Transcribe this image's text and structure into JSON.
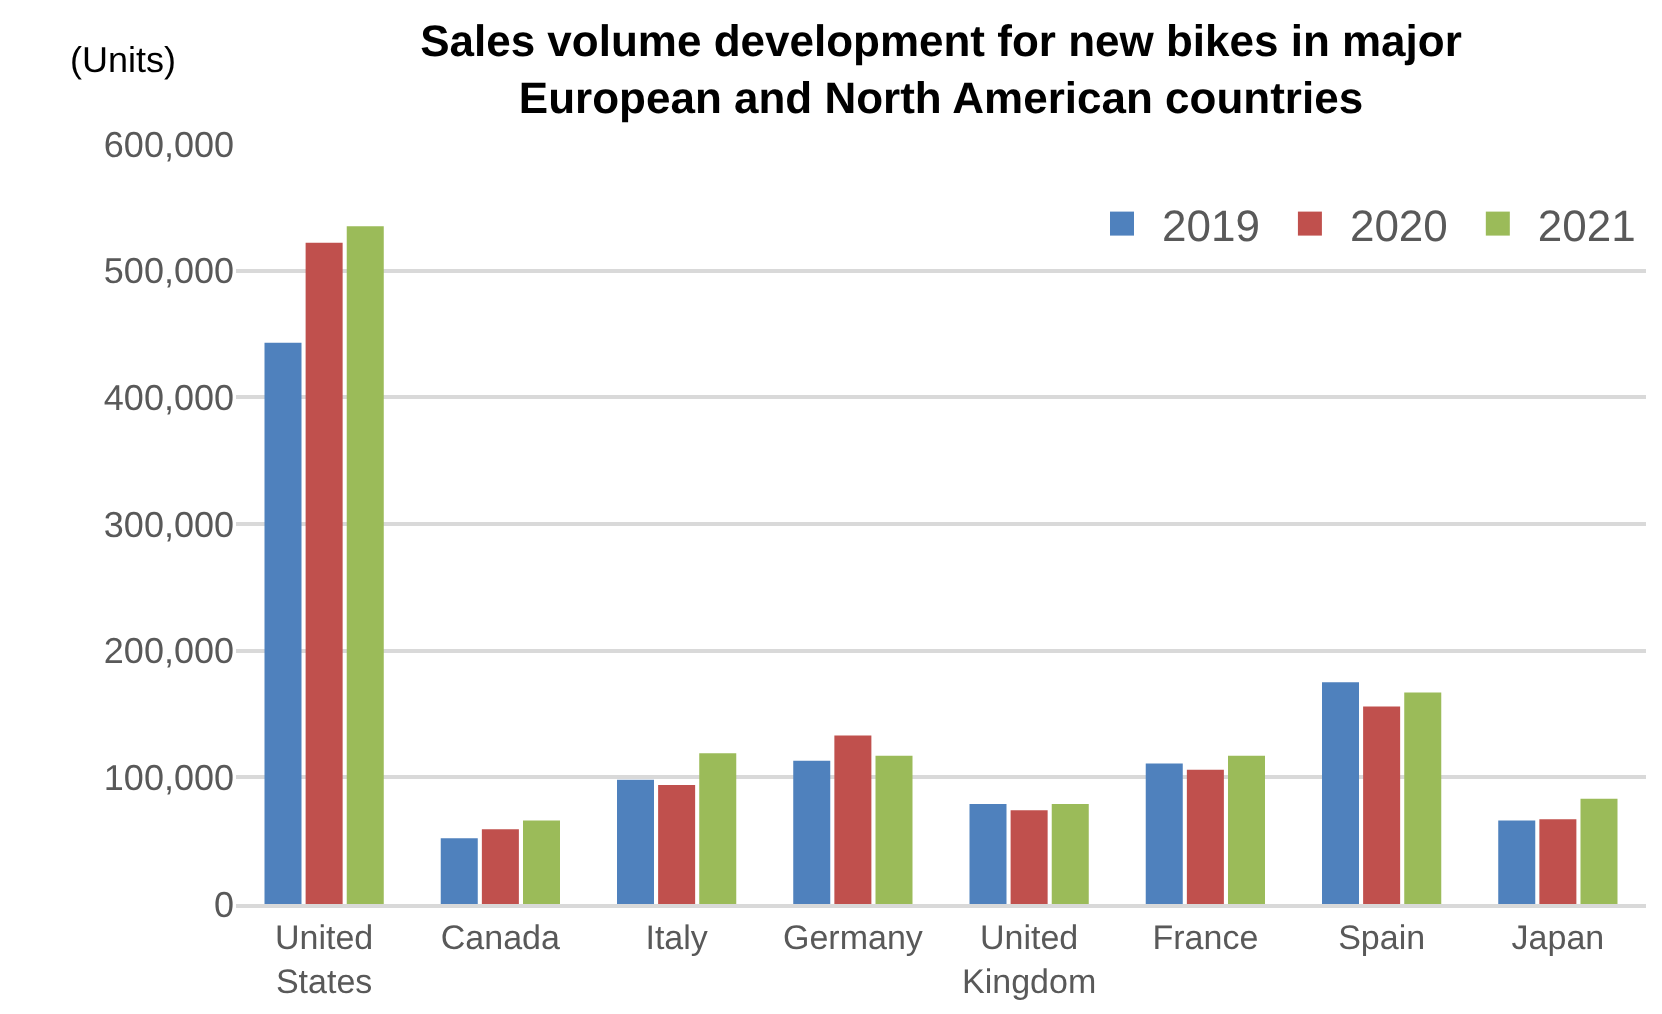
{
  "chart_data": {
    "type": "bar",
    "title": "Sales volume development for new bikes in major European and North American countries",
    "ylabel": "(Units)",
    "categories": [
      "United States",
      "Canada",
      "Italy",
      "Germany",
      "United Kingdom",
      "France",
      "Spain",
      "Japan"
    ],
    "series": [
      {
        "name": "2019",
        "color": "#4f81bd",
        "values": [
          443000,
          52000,
          98000,
          113000,
          79000,
          111000,
          175000,
          66000
        ]
      },
      {
        "name": "2020",
        "color": "#c0504d",
        "values": [
          522000,
          59000,
          94000,
          133000,
          74000,
          106000,
          156000,
          67000
        ]
      },
      {
        "name": "2021",
        "color": "#9bbb59",
        "values": [
          535000,
          66000,
          119000,
          117000,
          79000,
          117000,
          167000,
          83000
        ]
      }
    ],
    "ylim": [
      0,
      600000
    ],
    "yticks": [
      {
        "value": 0,
        "label": "0"
      },
      {
        "value": 100000,
        "label": "100,000"
      },
      {
        "value": 200000,
        "label": "200,000"
      },
      {
        "value": 300000,
        "label": "300,000"
      },
      {
        "value": 400000,
        "label": "400,000"
      },
      {
        "value": 500000,
        "label": "500,000"
      },
      {
        "value": 600000,
        "label": "600,000"
      }
    ],
    "grid": "y",
    "legend": "top right"
  }
}
